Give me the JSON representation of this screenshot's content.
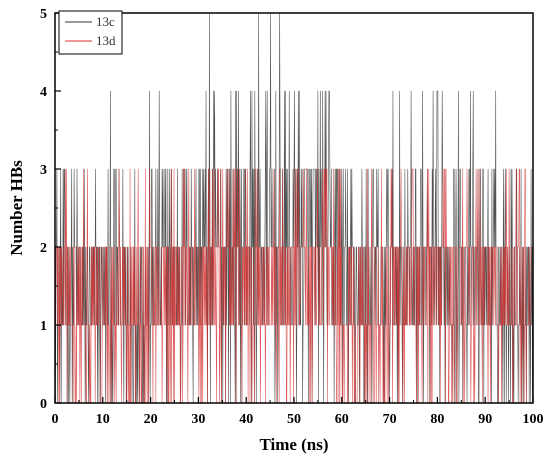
{
  "chart_data": {
    "type": "line",
    "title": "",
    "xlabel": "Time (ns)",
    "ylabel": "Number HBs",
    "xlim": [
      0,
      100
    ],
    "ylim": [
      0,
      5
    ],
    "x_ticks": [
      "0",
      "10",
      "20",
      "30",
      "40",
      "50",
      "60",
      "70",
      "80",
      "90",
      "100"
    ],
    "y_ticks": [
      "0",
      "1",
      "2",
      "3",
      "4",
      "5"
    ],
    "grid": false,
    "legend_position": "top-left",
    "sampling_interval_ns": 0.1,
    "series": [
      {
        "name": "13c",
        "color": "#333333",
        "segments": [
          {
            "x_range": [
              0,
              10
            ],
            "level_weights": [
              0.16,
              0.38,
              0.36,
              0.1,
              0.0,
              0.0
            ]
          },
          {
            "x_range": [
              10,
              20
            ],
            "level_weights": [
              0.18,
              0.4,
              0.32,
              0.09,
              0.01,
              0.0
            ]
          },
          {
            "x_range": [
              20,
              30
            ],
            "level_weights": [
              0.1,
              0.32,
              0.38,
              0.17,
              0.03,
              0.0
            ]
          },
          {
            "x_range": [
              30,
              40
            ],
            "level_weights": [
              0.06,
              0.26,
              0.38,
              0.23,
              0.06,
              0.01
            ]
          },
          {
            "x_range": [
              40,
              50
            ],
            "level_weights": [
              0.05,
              0.24,
              0.38,
              0.25,
              0.07,
              0.01
            ]
          },
          {
            "x_range": [
              50,
              60
            ],
            "level_weights": [
              0.06,
              0.25,
              0.37,
              0.23,
              0.08,
              0.01
            ]
          },
          {
            "x_range": [
              60,
              70
            ],
            "level_weights": [
              0.14,
              0.38,
              0.34,
              0.13,
              0.01,
              0.0
            ]
          },
          {
            "x_range": [
              70,
              80
            ],
            "level_weights": [
              0.1,
              0.32,
              0.38,
              0.17,
              0.03,
              0.0
            ]
          },
          {
            "x_range": [
              80,
              90
            ],
            "level_weights": [
              0.1,
              0.33,
              0.38,
              0.16,
              0.03,
              0.0
            ]
          },
          {
            "x_range": [
              90,
              100
            ],
            "level_weights": [
              0.12,
              0.34,
              0.36,
              0.15,
              0.03,
              0.0
            ]
          }
        ]
      },
      {
        "name": "13d",
        "color": "#d43030",
        "segments": [
          {
            "x_range": [
              0,
              10
            ],
            "level_weights": [
              0.16,
              0.38,
              0.4,
              0.06,
              0.0,
              0.0
            ]
          },
          {
            "x_range": [
              10,
              20
            ],
            "level_weights": [
              0.24,
              0.42,
              0.3,
              0.04,
              0.0,
              0.0
            ]
          },
          {
            "x_range": [
              20,
              30
            ],
            "level_weights": [
              0.14,
              0.38,
              0.4,
              0.08,
              0.0,
              0.0
            ]
          },
          {
            "x_range": [
              30,
              40
            ],
            "level_weights": [
              0.14,
              0.38,
              0.4,
              0.08,
              0.0,
              0.0
            ]
          },
          {
            "x_range": [
              40,
              50
            ],
            "level_weights": [
              0.16,
              0.4,
              0.38,
              0.06,
              0.0,
              0.0
            ]
          },
          {
            "x_range": [
              50,
              60
            ],
            "level_weights": [
              0.1,
              0.32,
              0.46,
              0.12,
              0.0,
              0.0
            ]
          },
          {
            "x_range": [
              60,
              70
            ],
            "level_weights": [
              0.3,
              0.48,
              0.2,
              0.02,
              0.0,
              0.0
            ]
          },
          {
            "x_range": [
              70,
              80
            ],
            "level_weights": [
              0.12,
              0.36,
              0.44,
              0.08,
              0.0,
              0.0
            ]
          },
          {
            "x_range": [
              80,
              90
            ],
            "level_weights": [
              0.12,
              0.36,
              0.44,
              0.08,
              0.0,
              0.0
            ]
          },
          {
            "x_range": [
              90,
              100
            ],
            "level_weights": [
              0.14,
              0.38,
              0.42,
              0.06,
              0.0,
              0.0
            ]
          }
        ]
      }
    ]
  }
}
